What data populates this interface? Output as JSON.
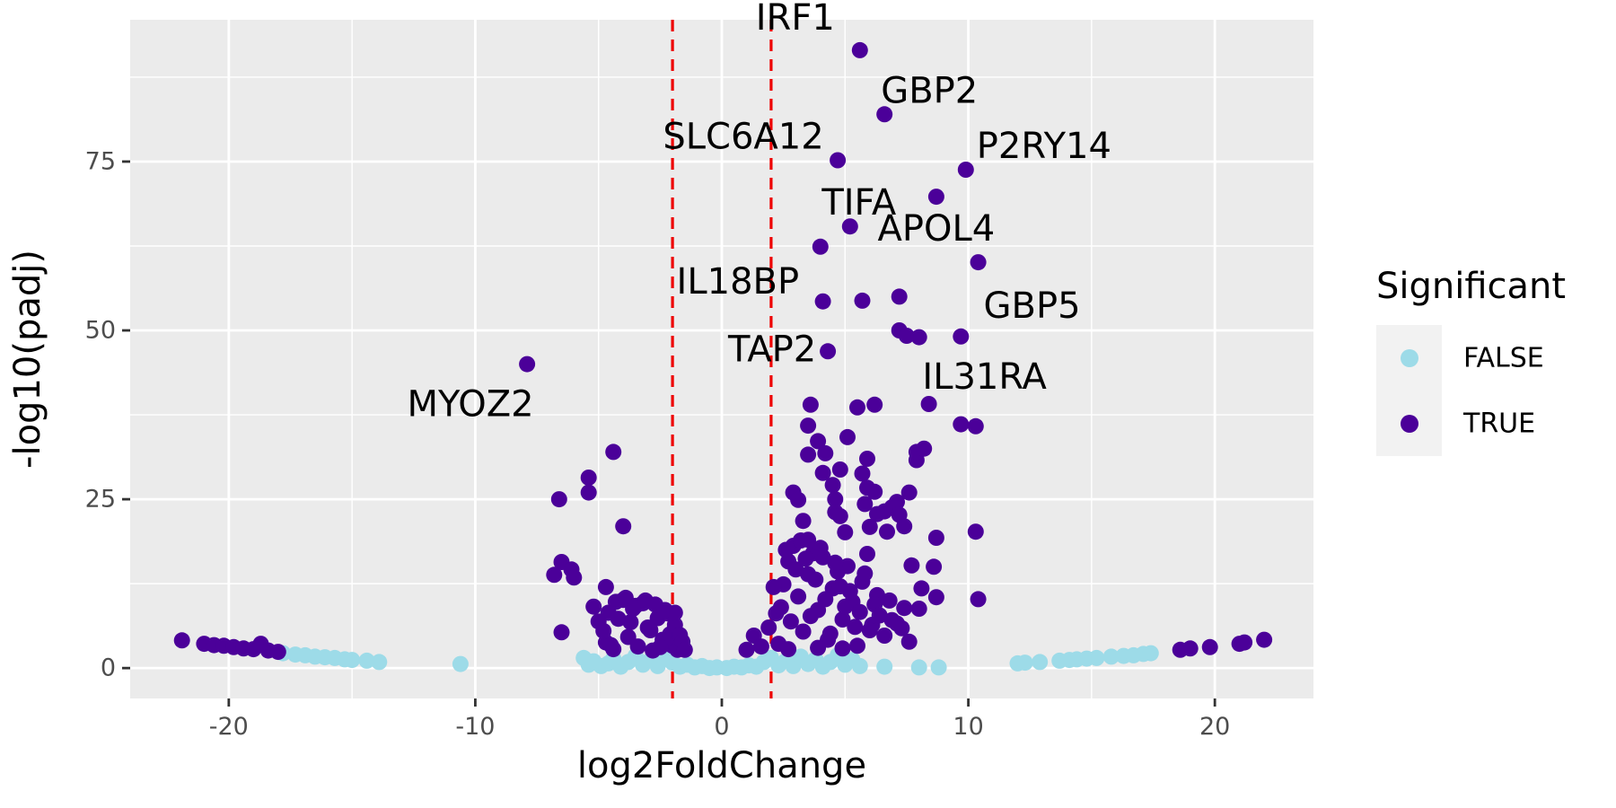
{
  "chart_data": {
    "type": "scatter",
    "title": "",
    "xlabel": "log2FoldChange",
    "ylabel": "-log10(padj)",
    "xlim": [
      -24,
      24
    ],
    "ylim": [
      -4.5,
      96
    ],
    "xticks": [
      -20,
      -10,
      0,
      10,
      20
    ],
    "xtick_labels": [
      "-20",
      "-10",
      "0",
      "10",
      "20"
    ],
    "yticks": [
      0,
      25,
      50,
      75
    ],
    "ytick_labels": [
      "0",
      "25",
      "50",
      "75"
    ],
    "grid": true,
    "thresholds": {
      "x": [
        -2,
        2
      ],
      "color": "#ee0000",
      "style": "dashed"
    },
    "legend": {
      "title": "Significant",
      "position": "right",
      "entries": [
        {
          "label": "FALSE",
          "color": "#9ddbe8"
        },
        {
          "label": "TRUE",
          "color": "#4b0099"
        }
      ]
    },
    "series": [
      {
        "name": "FALSE",
        "color": "#9ddbe8",
        "points": [
          [
            -17.8,
            2.2
          ],
          [
            -17.3,
            2.0
          ],
          [
            -16.9,
            1.9
          ],
          [
            -16.5,
            1.7
          ],
          [
            -16.1,
            1.6
          ],
          [
            -15.7,
            1.5
          ],
          [
            -15.3,
            1.3
          ],
          [
            -15.0,
            1.2
          ],
          [
            -14.4,
            1.1
          ],
          [
            -13.9,
            0.9
          ],
          [
            -10.6,
            0.6
          ],
          [
            -5.6,
            1.5
          ],
          [
            -5.4,
            0.5
          ],
          [
            -5.2,
            1.0
          ],
          [
            -4.9,
            0.3
          ],
          [
            -4.6,
            0.7
          ],
          [
            -4.4,
            1.4
          ],
          [
            -4.1,
            0.2
          ],
          [
            -3.8,
            0.9
          ],
          [
            -3.5,
            1.8
          ],
          [
            -3.2,
            0.5
          ],
          [
            -2.9,
            1.2
          ],
          [
            -2.6,
            0.3
          ],
          [
            -2.3,
            1.6
          ],
          [
            -2.0,
            0.8
          ],
          [
            -1.7,
            0.2
          ],
          [
            -1.4,
            0.5
          ],
          [
            -1.1,
            0.1
          ],
          [
            -0.8,
            0.3
          ],
          [
            -0.5,
            0.0
          ],
          [
            -0.2,
            0.1
          ],
          [
            0.2,
            0.0
          ],
          [
            0.5,
            0.2
          ],
          [
            0.8,
            0.1
          ],
          [
            1.1,
            0.4
          ],
          [
            1.4,
            0.2
          ],
          [
            1.7,
            0.9
          ],
          [
            2.0,
            1.5
          ],
          [
            2.3,
            0.4
          ],
          [
            2.6,
            1.1
          ],
          [
            2.9,
            0.3
          ],
          [
            3.2,
            1.7
          ],
          [
            3.5,
            0.6
          ],
          [
            3.8,
            1.3
          ],
          [
            4.1,
            0.2
          ],
          [
            4.4,
            0.9
          ],
          [
            4.7,
            1.9
          ],
          [
            5.0,
            0.5
          ],
          [
            5.3,
            1.2
          ],
          [
            5.6,
            0.3
          ],
          [
            6.6,
            0.2
          ],
          [
            8.0,
            0.1
          ],
          [
            8.8,
            0.1
          ],
          [
            12.0,
            0.7
          ],
          [
            12.3,
            0.8
          ],
          [
            12.9,
            0.9
          ],
          [
            13.7,
            1.1
          ],
          [
            14.1,
            1.2
          ],
          [
            14.4,
            1.3
          ],
          [
            14.8,
            1.4
          ],
          [
            15.2,
            1.5
          ],
          [
            15.8,
            1.7
          ],
          [
            16.3,
            1.8
          ],
          [
            16.7,
            1.9
          ],
          [
            17.1,
            2.1
          ],
          [
            17.4,
            2.2
          ]
        ]
      },
      {
        "name": "TRUE",
        "color": "#4b0099",
        "points": [
          [
            -21.9,
            4.1
          ],
          [
            -21.0,
            3.6
          ],
          [
            -20.6,
            3.4
          ],
          [
            -20.2,
            3.3
          ],
          [
            -19.8,
            3.1
          ],
          [
            -19.4,
            2.9
          ],
          [
            -19.0,
            2.8
          ],
          [
            -18.7,
            3.6
          ],
          [
            -18.4,
            2.6
          ],
          [
            -18.0,
            2.4
          ],
          [
            -7.9,
            45.0
          ],
          [
            -6.8,
            13.8
          ],
          [
            -6.6,
            25.0
          ],
          [
            -6.5,
            15.7
          ],
          [
            -6.1,
            14.6
          ],
          [
            -6.0,
            13.4
          ],
          [
            -6.5,
            5.3
          ],
          [
            -5.4,
            28.2
          ],
          [
            -5.4,
            26.0
          ],
          [
            -5.2,
            9.1
          ],
          [
            -5.0,
            6.9
          ],
          [
            -4.7,
            3.8
          ],
          [
            -4.4,
            32.0
          ],
          [
            -4.0,
            21.0
          ],
          [
            -4.7,
            12.0
          ],
          [
            -4.8,
            5.5
          ],
          [
            -4.6,
            8.2
          ],
          [
            -4.4,
            2.8
          ],
          [
            -4.2,
            7.3
          ],
          [
            -4.0,
            10.1
          ],
          [
            -3.8,
            4.6
          ],
          [
            -3.6,
            8.8
          ],
          [
            -3.4,
            3.2
          ],
          [
            -3.2,
            9.6
          ],
          [
            -3.0,
            6.0
          ],
          [
            -2.8,
            2.6
          ],
          [
            -2.6,
            7.4
          ],
          [
            -2.4,
            4.2
          ],
          [
            -2.2,
            8.1
          ],
          [
            -2.1,
            5.0
          ],
          [
            -2.0,
            3.3
          ],
          [
            -1.9,
            6.4
          ],
          [
            -1.8,
            2.7
          ],
          [
            -1.7,
            4.9
          ],
          [
            -4.3,
            9.8
          ],
          [
            -3.9,
            10.4
          ],
          [
            -3.5,
            9.2
          ],
          [
            -3.1,
            10.0
          ],
          [
            -2.7,
            9.4
          ],
          [
            -2.3,
            8.6
          ],
          [
            -1.9,
            8.2
          ],
          [
            -1.6,
            3.9
          ],
          [
            -1.5,
            2.7
          ],
          [
            -4.5,
            3.4
          ],
          [
            -3.7,
            6.8
          ],
          [
            -2.9,
            5.6
          ],
          [
            -2.5,
            3.1
          ],
          [
            1.0,
            2.7
          ],
          [
            1.3,
            4.8
          ],
          [
            1.6,
            3.2
          ],
          [
            1.9,
            6.0
          ],
          [
            2.2,
            8.1
          ],
          [
            2.5,
            12.4
          ],
          [
            2.7,
            15.8
          ],
          [
            2.9,
            18.1
          ],
          [
            3.1,
            10.6
          ],
          [
            3.3,
            5.4
          ],
          [
            3.5,
            13.9
          ],
          [
            3.7,
            17.0
          ],
          [
            3.9,
            8.6
          ],
          [
            4.1,
            16.4
          ],
          [
            4.3,
            4.2
          ],
          [
            4.5,
            11.8
          ],
          [
            4.7,
            14.3
          ],
          [
            4.9,
            7.2
          ],
          [
            5.1,
            15.1
          ],
          [
            5.3,
            9.8
          ],
          [
            5.5,
            3.3
          ],
          [
            5.7,
            12.8
          ],
          [
            5.9,
            16.9
          ],
          [
            6.1,
            6.4
          ],
          [
            6.3,
            10.8
          ],
          [
            6.6,
            4.8
          ],
          [
            6.9,
            7.1
          ],
          [
            7.3,
            5.9
          ],
          [
            2.1,
            12.0
          ],
          [
            2.4,
            9.0
          ],
          [
            2.6,
            17.5
          ],
          [
            2.8,
            6.9
          ],
          [
            3.0,
            14.6
          ],
          [
            3.2,
            18.9
          ],
          [
            3.4,
            16.2
          ],
          [
            3.6,
            7.7
          ],
          [
            3.8,
            13.1
          ],
          [
            4.0,
            17.8
          ],
          [
            4.2,
            10.2
          ],
          [
            4.4,
            5.1
          ],
          [
            4.6,
            15.6
          ],
          [
            4.8,
            12.1
          ],
          [
            5.0,
            9.1
          ],
          [
            5.2,
            11.4
          ],
          [
            5.4,
            6.1
          ],
          [
            5.6,
            8.3
          ],
          [
            5.8,
            14.0
          ],
          [
            6.0,
            5.6
          ],
          [
            6.2,
            9.4
          ],
          [
            6.4,
            7.8
          ],
          [
            6.8,
            10.0
          ],
          [
            7.1,
            6.6
          ],
          [
            7.6,
            3.9
          ],
          [
            2.3,
            3.6
          ],
          [
            2.7,
            2.8
          ],
          [
            3.9,
            3.0
          ],
          [
            4.9,
            2.9
          ],
          [
            2.9,
            26.0
          ],
          [
            3.1,
            24.9
          ],
          [
            3.3,
            21.8
          ],
          [
            3.5,
            19.0
          ],
          [
            3.5,
            31.6
          ],
          [
            3.5,
            35.9
          ],
          [
            3.6,
            39.0
          ],
          [
            3.9,
            33.6
          ],
          [
            4.1,
            28.9
          ],
          [
            4.2,
            31.8
          ],
          [
            4.5,
            27.1
          ],
          [
            4.6,
            25.0
          ],
          [
            4.6,
            23.1
          ],
          [
            4.8,
            22.5
          ],
          [
            4.8,
            29.4
          ],
          [
            5.0,
            20.1
          ],
          [
            5.1,
            34.2
          ],
          [
            5.5,
            38.6
          ],
          [
            5.7,
            28.8
          ],
          [
            5.8,
            24.3
          ],
          [
            5.9,
            31.0
          ],
          [
            5.9,
            26.7
          ],
          [
            6.0,
            20.9
          ],
          [
            6.2,
            39.0
          ],
          [
            6.2,
            26.1
          ],
          [
            6.3,
            22.8
          ],
          [
            6.6,
            23.2
          ],
          [
            6.7,
            20.2
          ],
          [
            6.9,
            23.8
          ],
          [
            7.1,
            24.6
          ],
          [
            7.2,
            22.7
          ],
          [
            7.4,
            21.0
          ],
          [
            7.6,
            26.0
          ],
          [
            7.7,
            15.2
          ],
          [
            7.9,
            30.8
          ],
          [
            7.9,
            32.0
          ],
          [
            8.1,
            11.8
          ],
          [
            8.2,
            32.5
          ],
          [
            8.4,
            39.1
          ],
          [
            8.6,
            15.0
          ],
          [
            8.7,
            19.3
          ],
          [
            8.7,
            10.5
          ],
          [
            8.0,
            8.8
          ],
          [
            7.4,
            8.9
          ],
          [
            10.3,
            20.2
          ],
          [
            10.4,
            10.2
          ],
          [
            4.0,
            62.4
          ],
          [
            4.1,
            54.3
          ],
          [
            4.3,
            46.9
          ],
          [
            4.7,
            75.2
          ],
          [
            5.2,
            65.4
          ],
          [
            5.6,
            91.5
          ],
          [
            5.7,
            54.4
          ],
          [
            6.6,
            82.0
          ],
          [
            7.2,
            55.0
          ],
          [
            7.2,
            50.0
          ],
          [
            7.5,
            49.2
          ],
          [
            8.0,
            49.0
          ],
          [
            8.7,
            69.8
          ],
          [
            9.7,
            49.1
          ],
          [
            9.9,
            73.8
          ],
          [
            10.4,
            60.1
          ],
          [
            9.7,
            36.1
          ],
          [
            10.3,
            35.8
          ],
          [
            18.6,
            2.7
          ],
          [
            19.0,
            2.9
          ],
          [
            19.8,
            3.1
          ],
          [
            21.0,
            3.6
          ],
          [
            21.2,
            3.8
          ],
          [
            22.0,
            4.2
          ]
        ]
      }
    ],
    "annotations": [
      {
        "text": "IRF1",
        "x": 5.6,
        "y": 91.5
      },
      {
        "text": "GBP2",
        "x": 6.6,
        "y": 82.0
      },
      {
        "text": "SLC6A12",
        "x": 4.7,
        "y": 75.2
      },
      {
        "text": "P2RY14",
        "x": 9.9,
        "y": 73.8
      },
      {
        "text": "TIFA",
        "x": 5.2,
        "y": 65.4
      },
      {
        "text": "APOL4",
        "x": 8.7,
        "y": 69.8
      },
      {
        "text": "IL18BP",
        "x": 4.0,
        "y": 62.4
      },
      {
        "text": "GBP5",
        "x": 10.4,
        "y": 60.1
      },
      {
        "text": "MYOZ2",
        "x": -7.9,
        "y": 45.0
      },
      {
        "text": "TAP2",
        "x": 4.3,
        "y": 46.9
      },
      {
        "text": "IL31RA",
        "x": 8.4,
        "y": 39.1
      }
    ]
  }
}
